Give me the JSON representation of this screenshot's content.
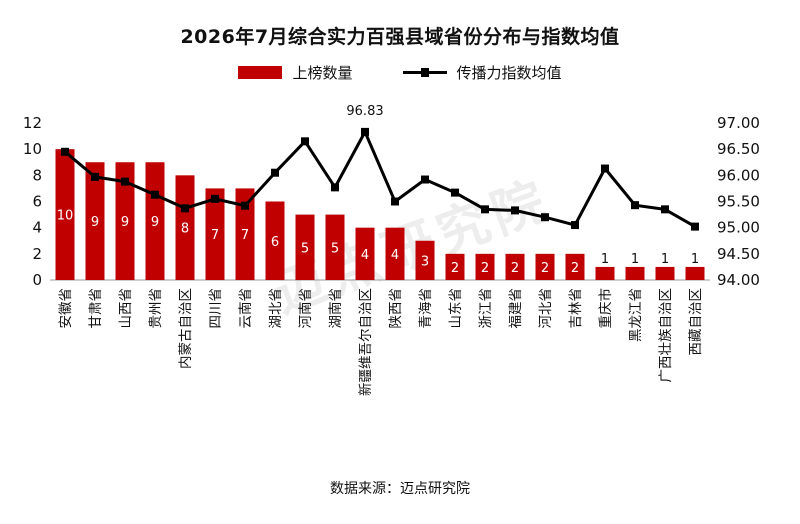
{
  "title": "2026年7月综合实力百强县域省份分布与指数均值",
  "source": "数据来源：迈点研究院",
  "watermark": "迈点研究院",
  "chart_data": {
    "type": "bar+line",
    "categories": [
      "安徽省",
      "甘肃省",
      "山西省",
      "贵州省",
      "内蒙古自治区",
      "四川省",
      "云南省",
      "湖北省",
      "河南省",
      "湖南省",
      "新疆维吾尔自治区",
      "陕西省",
      "青海省",
      "山东省",
      "浙江省",
      "福建省",
      "河北省",
      "吉林省",
      "重庆市",
      "黑龙江省",
      "广西壮族自治区",
      "西藏自治区"
    ],
    "series": [
      {
        "name": "上榜数量",
        "type": "bar",
        "axis": "left",
        "color": "#c00000",
        "values": [
          10,
          9,
          9,
          9,
          8,
          7,
          7,
          6,
          5,
          5,
          4,
          4,
          3,
          2,
          2,
          2,
          2,
          2,
          1,
          1,
          1,
          1
        ]
      },
      {
        "name": "传播力指数均值",
        "type": "line",
        "axis": "right",
        "color": "#000000",
        "values": [
          96.45,
          95.97,
          95.88,
          95.63,
          95.37,
          95.55,
          95.42,
          96.05,
          96.65,
          95.77,
          96.83,
          95.5,
          95.92,
          95.67,
          95.35,
          95.33,
          95.2,
          95.05,
          96.13,
          95.43,
          95.35,
          95.02
        ]
      }
    ],
    "y_left": {
      "min": 0,
      "max": 12,
      "ticks": [
        "0",
        "2",
        "4",
        "6",
        "8",
        "10",
        "12"
      ]
    },
    "y_right": {
      "min": 94.0,
      "max": 97.0,
      "ticks": [
        "94.00",
        "94.50",
        "95.00",
        "95.50",
        "96.00",
        "96.50",
        "97.00"
      ]
    },
    "annotation": {
      "label": "96.83"
    },
    "legend_position": "top-center",
    "grid": false
  }
}
